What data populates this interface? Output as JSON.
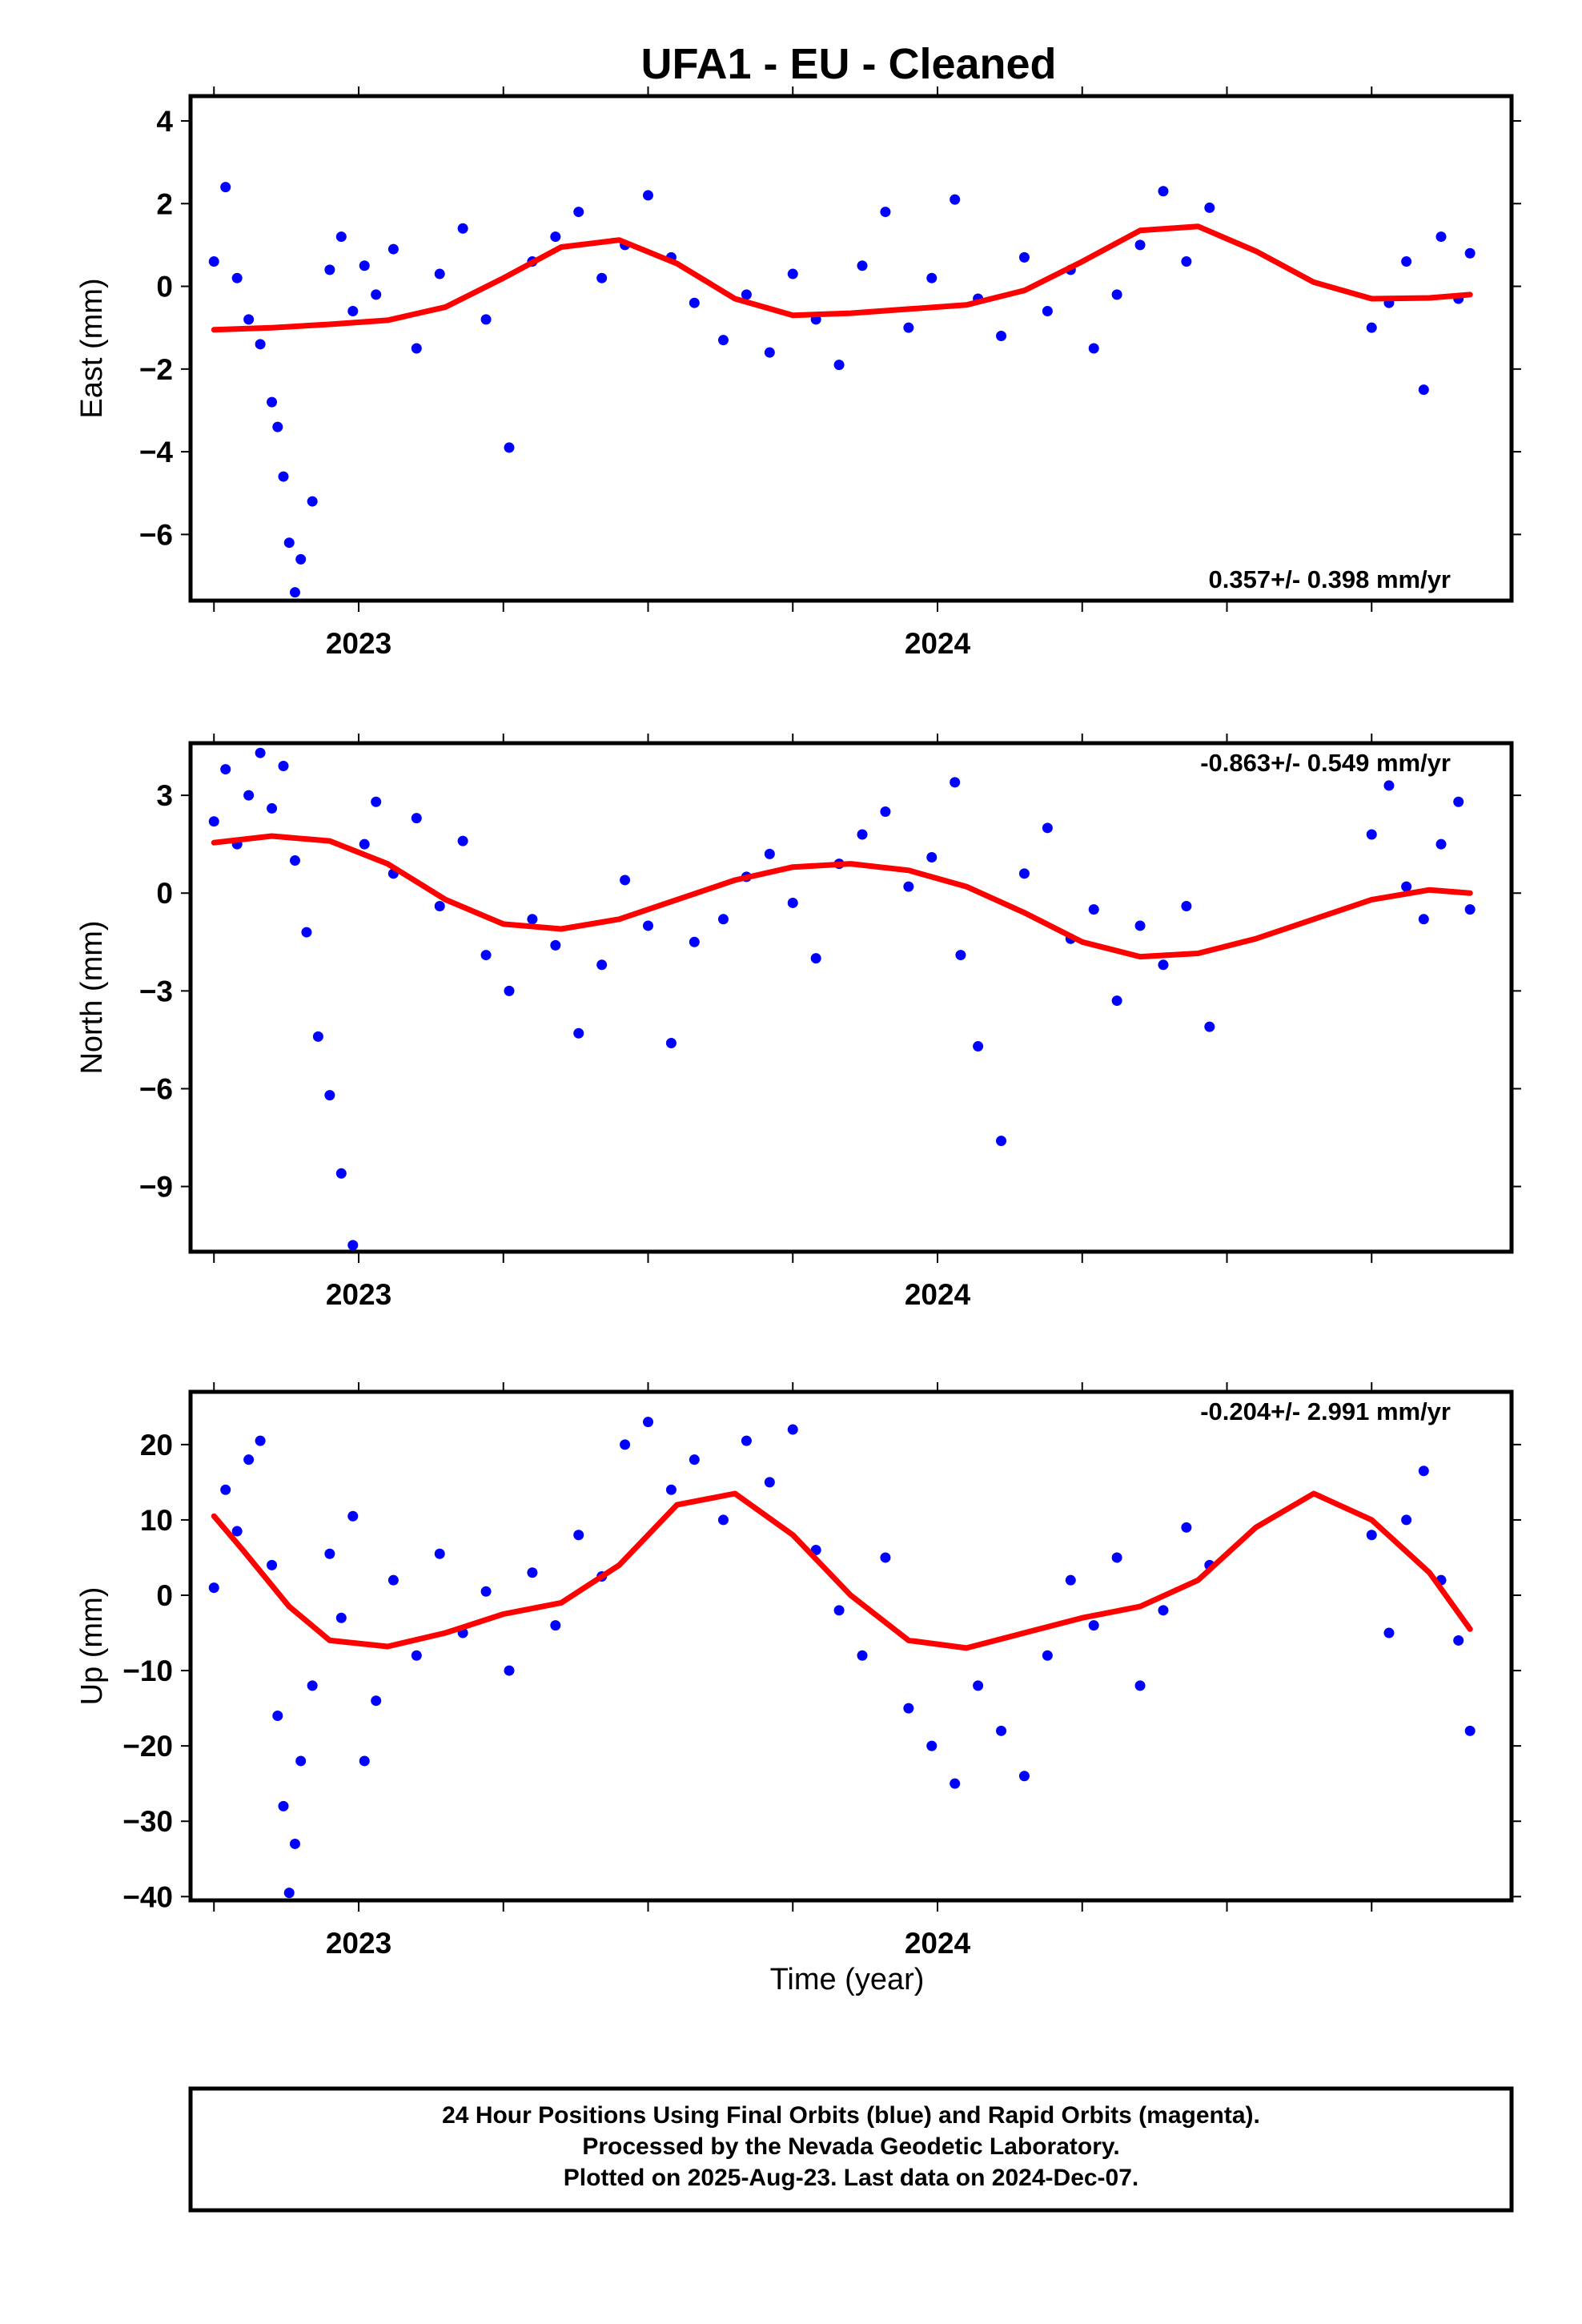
{
  "title": "UFA1  - EU - Cleaned",
  "xlabel": "Time (year)",
  "footer": [
    "24 Hour Positions Using Final Orbits (blue) and Rapid Orbits (magenta).",
    "Processed by the Nevada Geodetic Laboratory.",
    "Plotted on 2025-Aug-23. Last data on 2024-Dec-07."
  ],
  "colors": {
    "points": "#0000ff",
    "fit": "#ff0000",
    "frame": "#000000"
  },
  "chart_data": [
    {
      "type": "scatter",
      "name": "East",
      "ylabel": "East (mm)",
      "rate_label": "0.357+/- 0.398 mm/yr",
      "rate_position": "bottom-right",
      "xlim": [
        2022.7,
        2024.97
      ],
      "ylim": [
        -7.6,
        4.6
      ],
      "xtick_labels": [
        "2023",
        "2024"
      ],
      "ytick_labels": [
        "4",
        "2",
        "0",
        "-2",
        "-4",
        "-6"
      ],
      "series": [
        {
          "name": "daily positions",
          "x": [
            2022.75,
            2022.77,
            2022.79,
            2022.81,
            2022.83,
            2022.85,
            2022.86,
            2022.87,
            2022.88,
            2022.89,
            2022.9,
            2022.92,
            2022.95,
            2022.97,
            2022.99,
            2023.01,
            2023.03,
            2023.06,
            2023.1,
            2023.14,
            2023.18,
            2023.22,
            2023.26,
            2023.3,
            2023.34,
            2023.38,
            2023.42,
            2023.46,
            2023.5,
            2023.54,
            2023.58,
            2023.63,
            2023.67,
            2023.71,
            2023.75,
            2023.79,
            2023.83,
            2023.87,
            2023.91,
            2023.95,
            2023.99,
            2024.03,
            2024.07,
            2024.11,
            2024.15,
            2024.19,
            2024.23,
            2024.27,
            2024.31,
            2024.35,
            2024.39,
            2024.43,
            2024.47,
            2024.75,
            2024.78,
            2024.81,
            2024.84,
            2024.87,
            2024.9,
            2024.92
          ],
          "y": [
            0.6,
            2.4,
            0.2,
            -0.8,
            -1.4,
            -2.8,
            -3.4,
            -4.6,
            -6.2,
            -7.4,
            -6.6,
            -5.2,
            0.4,
            1.2,
            -0.6,
            0.5,
            -0.2,
            0.9,
            -1.5,
            0.3,
            1.4,
            -0.8,
            -3.9,
            0.6,
            1.2,
            1.8,
            0.2,
            1.0,
            2.2,
            0.7,
            -0.4,
            -1.3,
            -0.2,
            -1.6,
            0.3,
            -0.8,
            -1.9,
            0.5,
            1.8,
            -1.0,
            0.2,
            2.1,
            -0.3,
            -1.2,
            0.7,
            -0.6,
            0.4,
            -1.5,
            -0.2,
            1.0,
            2.3,
            0.6,
            1.9,
            -1.0,
            -0.4,
            0.6,
            -2.5,
            1.2,
            -0.3,
            0.8
          ]
        },
        {
          "name": "model fit",
          "x": [
            2022.75,
            2022.85,
            2022.95,
            2023.05,
            2023.15,
            2023.25,
            2023.35,
            2023.45,
            2023.55,
            2023.65,
            2023.75,
            2023.85,
            2023.95,
            2024.05,
            2024.15,
            2024.25,
            2024.35,
            2024.45,
            2024.55,
            2024.65,
            2024.75,
            2024.85,
            2024.92
          ],
          "y": [
            -1.05,
            -1.0,
            -0.92,
            -0.82,
            -0.5,
            0.2,
            0.95,
            1.12,
            0.55,
            -0.3,
            -0.7,
            -0.65,
            -0.55,
            -0.45,
            -0.1,
            0.6,
            1.35,
            1.45,
            0.85,
            0.1,
            -0.3,
            -0.28,
            -0.2
          ]
        }
      ]
    },
    {
      "type": "scatter",
      "name": "North",
      "ylabel": "North (mm)",
      "rate_label": "-0.863+/- 0.549 mm/yr",
      "rate_position": "top-right",
      "xlim": [
        2022.7,
        2024.97
      ],
      "ylim": [
        -11.0,
        4.6
      ],
      "xtick_labels": [
        "2023",
        "2024"
      ],
      "ytick_labels": [
        "3",
        "0",
        "-3",
        "-6",
        "-9"
      ],
      "series": [
        {
          "name": "daily positions",
          "x": [
            2022.75,
            2022.77,
            2022.79,
            2022.81,
            2022.83,
            2022.85,
            2022.87,
            2022.89,
            2022.91,
            2022.93,
            2022.95,
            2022.97,
            2022.99,
            2023.01,
            2023.03,
            2023.06,
            2023.1,
            2023.14,
            2023.18,
            2023.22,
            2023.26,
            2023.3,
            2023.34,
            2023.38,
            2023.42,
            2023.46,
            2023.5,
            2023.54,
            2023.58,
            2023.63,
            2023.67,
            2023.71,
            2023.75,
            2023.79,
            2023.83,
            2023.87,
            2023.91,
            2023.95,
            2023.99,
            2024.03,
            2024.04,
            2024.07,
            2024.11,
            2024.15,
            2024.19,
            2024.23,
            2024.27,
            2024.31,
            2024.35,
            2024.39,
            2024.43,
            2024.47,
            2024.75,
            2024.78,
            2024.81,
            2024.84,
            2024.87,
            2024.9,
            2024.92
          ],
          "y": [
            2.2,
            3.8,
            1.5,
            3.0,
            4.3,
            2.6,
            3.9,
            1.0,
            -1.2,
            -4.4,
            -6.2,
            -8.6,
            -10.8,
            1.5,
            2.8,
            0.6,
            2.3,
            -0.4,
            1.6,
            -1.9,
            -3.0,
            -0.8,
            -1.6,
            -4.3,
            -2.2,
            0.4,
            -1.0,
            -4.6,
            -1.5,
            -0.8,
            0.5,
            1.2,
            -0.3,
            -2.0,
            0.9,
            1.8,
            2.5,
            0.2,
            1.1,
            3.4,
            -1.9,
            -4.7,
            -7.6,
            0.6,
            2.0,
            -1.4,
            -0.5,
            -3.3,
            -1.0,
            -2.2,
            -0.4,
            -4.1,
            1.8,
            3.3,
            0.2,
            -0.8,
            1.5,
            2.8,
            -0.5
          ]
        },
        {
          "name": "model fit",
          "x": [
            2022.75,
            2022.85,
            2022.95,
            2023.05,
            2023.15,
            2023.25,
            2023.35,
            2023.45,
            2023.55,
            2023.65,
            2023.75,
            2023.85,
            2023.95,
            2024.05,
            2024.15,
            2024.25,
            2024.35,
            2024.45,
            2024.55,
            2024.65,
            2024.75,
            2024.85,
            2024.92
          ],
          "y": [
            1.55,
            1.75,
            1.6,
            0.9,
            -0.2,
            -0.95,
            -1.1,
            -0.8,
            -0.2,
            0.4,
            0.8,
            0.9,
            0.7,
            0.2,
            -0.6,
            -1.5,
            -1.95,
            -1.85,
            -1.4,
            -0.8,
            -0.2,
            0.1,
            0.0
          ]
        }
      ]
    },
    {
      "type": "scatter",
      "name": "Up",
      "ylabel": "Up (mm)",
      "rate_label": "-0.204+/- 2.991 mm/yr",
      "rate_position": "top-right",
      "xlim": [
        2022.7,
        2024.97
      ],
      "ylim": [
        -40.5,
        27.0
      ],
      "xtick_labels": [
        "2023",
        "2024"
      ],
      "ytick_labels": [
        "20",
        "10",
        "0",
        "-10",
        "-20",
        "-30",
        "-40"
      ],
      "series": [
        {
          "name": "daily positions",
          "x": [
            2022.75,
            2022.77,
            2022.79,
            2022.81,
            2022.83,
            2022.85,
            2022.86,
            2022.87,
            2022.88,
            2022.89,
            2022.9,
            2022.92,
            2022.95,
            2022.97,
            2022.99,
            2023.01,
            2023.03,
            2023.06,
            2023.1,
            2023.14,
            2023.18,
            2023.22,
            2023.26,
            2023.3,
            2023.34,
            2023.38,
            2023.42,
            2023.46,
            2023.5,
            2023.54,
            2023.58,
            2023.63,
            2023.67,
            2023.71,
            2023.75,
            2023.79,
            2023.83,
            2023.87,
            2023.91,
            2023.95,
            2023.99,
            2024.03,
            2024.07,
            2024.11,
            2024.15,
            2024.19,
            2024.23,
            2024.27,
            2024.31,
            2024.35,
            2024.39,
            2024.43,
            2024.47,
            2024.75,
            2024.78,
            2024.81,
            2024.84,
            2024.87,
            2024.9,
            2024.92
          ],
          "y": [
            1.0,
            14.0,
            8.5,
            18.0,
            20.5,
            4.0,
            -16.0,
            -28.0,
            -39.5,
            -33.0,
            -22.0,
            -12.0,
            5.5,
            -3.0,
            10.5,
            -22.0,
            -14.0,
            2.0,
            -8.0,
            5.5,
            -5.0,
            0.5,
            -10.0,
            3.0,
            -4.0,
            8.0,
            2.5,
            20.0,
            23.0,
            14.0,
            18.0,
            10.0,
            20.5,
            15.0,
            22.0,
            6.0,
            -2.0,
            -8.0,
            5.0,
            -15.0,
            -20.0,
            -25.0,
            -12.0,
            -18.0,
            -24.0,
            -8.0,
            2.0,
            -4.0,
            5.0,
            -12.0,
            -2.0,
            9.0,
            4.0,
            8.0,
            -5.0,
            10.0,
            16.5,
            2.0,
            -6.0,
            -18.0
          ]
        },
        {
          "name": "model fit",
          "x": [
            2022.75,
            2022.8,
            2022.88,
            2022.95,
            2023.05,
            2023.15,
            2023.25,
            2023.35,
            2023.45,
            2023.55,
            2023.65,
            2023.75,
            2023.85,
            2023.95,
            2024.05,
            2024.15,
            2024.25,
            2024.35,
            2024.45,
            2024.55,
            2024.65,
            2024.75,
            2024.85,
            2024.92
          ],
          "y": [
            10.5,
            6.0,
            -1.5,
            -6.0,
            -6.8,
            -5.0,
            -2.5,
            -1.0,
            4.0,
            12.0,
            13.5,
            8.0,
            0.0,
            -6.0,
            -7.0,
            -5.0,
            -3.0,
            -1.5,
            2.0,
            9.0,
            13.5,
            10.0,
            3.0,
            -4.5
          ]
        }
      ]
    }
  ]
}
